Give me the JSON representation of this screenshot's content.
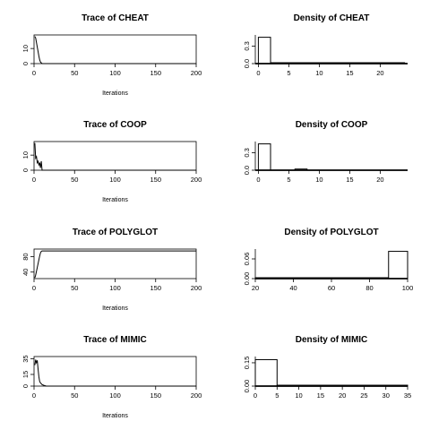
{
  "chart_data": [
    {
      "type": "line",
      "title": "Trace of CHEAT",
      "xlabel": "Iterations",
      "xlim": [
        0,
        200
      ],
      "ylim": [
        0,
        19
      ],
      "xticks": [
        "0",
        "50",
        "100",
        "150",
        "200"
      ],
      "yticks": [
        "0",
        "10"
      ],
      "series": [
        {
          "x": [
            1,
            2,
            3,
            4,
            5,
            6,
            7,
            8,
            10,
            200
          ],
          "y": [
            18,
            17,
            14,
            11,
            8,
            5,
            2.5,
            1,
            0,
            0
          ]
        }
      ]
    },
    {
      "type": "bar",
      "title": "Density of CHEAT",
      "xlim": [
        -0.5,
        24.5
      ],
      "ylim": [
        0,
        0.49
      ],
      "xticks": [
        "0",
        "5",
        "10",
        "15",
        "20"
      ],
      "yticks": [
        "0.0",
        "0.3"
      ],
      "bins": [
        {
          "x0": 0,
          "x1": 2,
          "density": 0.45
        },
        {
          "x0": 2,
          "x1": 24,
          "density": 0.002
        }
      ]
    },
    {
      "type": "line",
      "title": "Trace of COOP",
      "xlabel": "Iterations",
      "xlim": [
        0,
        200
      ],
      "ylim": [
        0,
        19
      ],
      "xticks": [
        "0",
        "50",
        "100",
        "150",
        "200"
      ],
      "yticks": [
        "0",
        "10"
      ],
      "series": [
        {
          "x": [
            1,
            2,
            3,
            4,
            5,
            6,
            7,
            8,
            9,
            10,
            200
          ],
          "y": [
            18,
            8,
            9,
            5,
            6,
            3.5,
            5,
            1.5,
            6,
            0,
            0
          ]
        }
      ]
    },
    {
      "type": "bar",
      "title": "Density of COOP",
      "xlim": [
        -0.5,
        24.5
      ],
      "ylim": [
        0,
        0.49
      ],
      "xticks": [
        "0",
        "5",
        "10",
        "15",
        "20"
      ],
      "yticks": [
        "0.0",
        "0.3"
      ],
      "bins": [
        {
          "x0": 0,
          "x1": 2,
          "density": 0.45
        },
        {
          "x0": 6,
          "x1": 8,
          "density": 0.02
        }
      ]
    },
    {
      "type": "line",
      "title": "Trace of POLYGLOT",
      "xlabel": "Iterations",
      "xlim": [
        0,
        200
      ],
      "ylim": [
        23,
        100
      ],
      "xticks": [
        "0",
        "50",
        "100",
        "150",
        "200"
      ],
      "yticks": [
        "40",
        "80"
      ],
      "series": [
        {
          "x": [
            1,
            2,
            3,
            4,
            5,
            6,
            7,
            8,
            9,
            10,
            200
          ],
          "y": [
            25,
            32,
            42,
            52,
            62,
            72,
            82,
            90,
            94,
            95,
            95
          ]
        }
      ]
    },
    {
      "type": "bar",
      "title": "Density of POLYGLOT",
      "xlim": [
        20,
        100
      ],
      "ylim": [
        0,
        0.09
      ],
      "xticks": [
        "20",
        "40",
        "60",
        "80",
        "100"
      ],
      "yticks": [
        "0.00",
        "0.06"
      ],
      "bins": [
        {
          "x0": 20,
          "x1": 90,
          "density": 0.0003
        },
        {
          "x0": 90,
          "x1": 100,
          "density": 0.083
        }
      ]
    },
    {
      "type": "line",
      "title": "Trace of MIMIC",
      "xlabel": "Iterations",
      "xlim": [
        0,
        200
      ],
      "ylim": [
        0,
        38
      ],
      "xticks": [
        "0",
        "50",
        "100",
        "150",
        "200"
      ],
      "yticks": [
        "0",
        "15",
        "35"
      ],
      "series": [
        {
          "x": [
            1,
            2,
            3,
            4,
            5,
            6,
            7,
            8,
            9,
            10,
            12,
            15,
            200
          ],
          "y": [
            27,
            34,
            30,
            33,
            22,
            12,
            6,
            4,
            3,
            2,
            1,
            0,
            0
          ]
        }
      ]
    },
    {
      "type": "bar",
      "title": "Density of MIMIC",
      "xlim": [
        0,
        35
      ],
      "ylim": [
        0,
        0.19
      ],
      "xticks": [
        "0",
        "5",
        "10",
        "15",
        "20",
        "25",
        "30",
        "35"
      ],
      "yticks": [
        "0.00",
        "0.15"
      ],
      "bins": [
        {
          "x0": 0,
          "x1": 5,
          "density": 0.17
        },
        {
          "x0": 5,
          "x1": 35,
          "density": 0.001
        }
      ]
    }
  ]
}
